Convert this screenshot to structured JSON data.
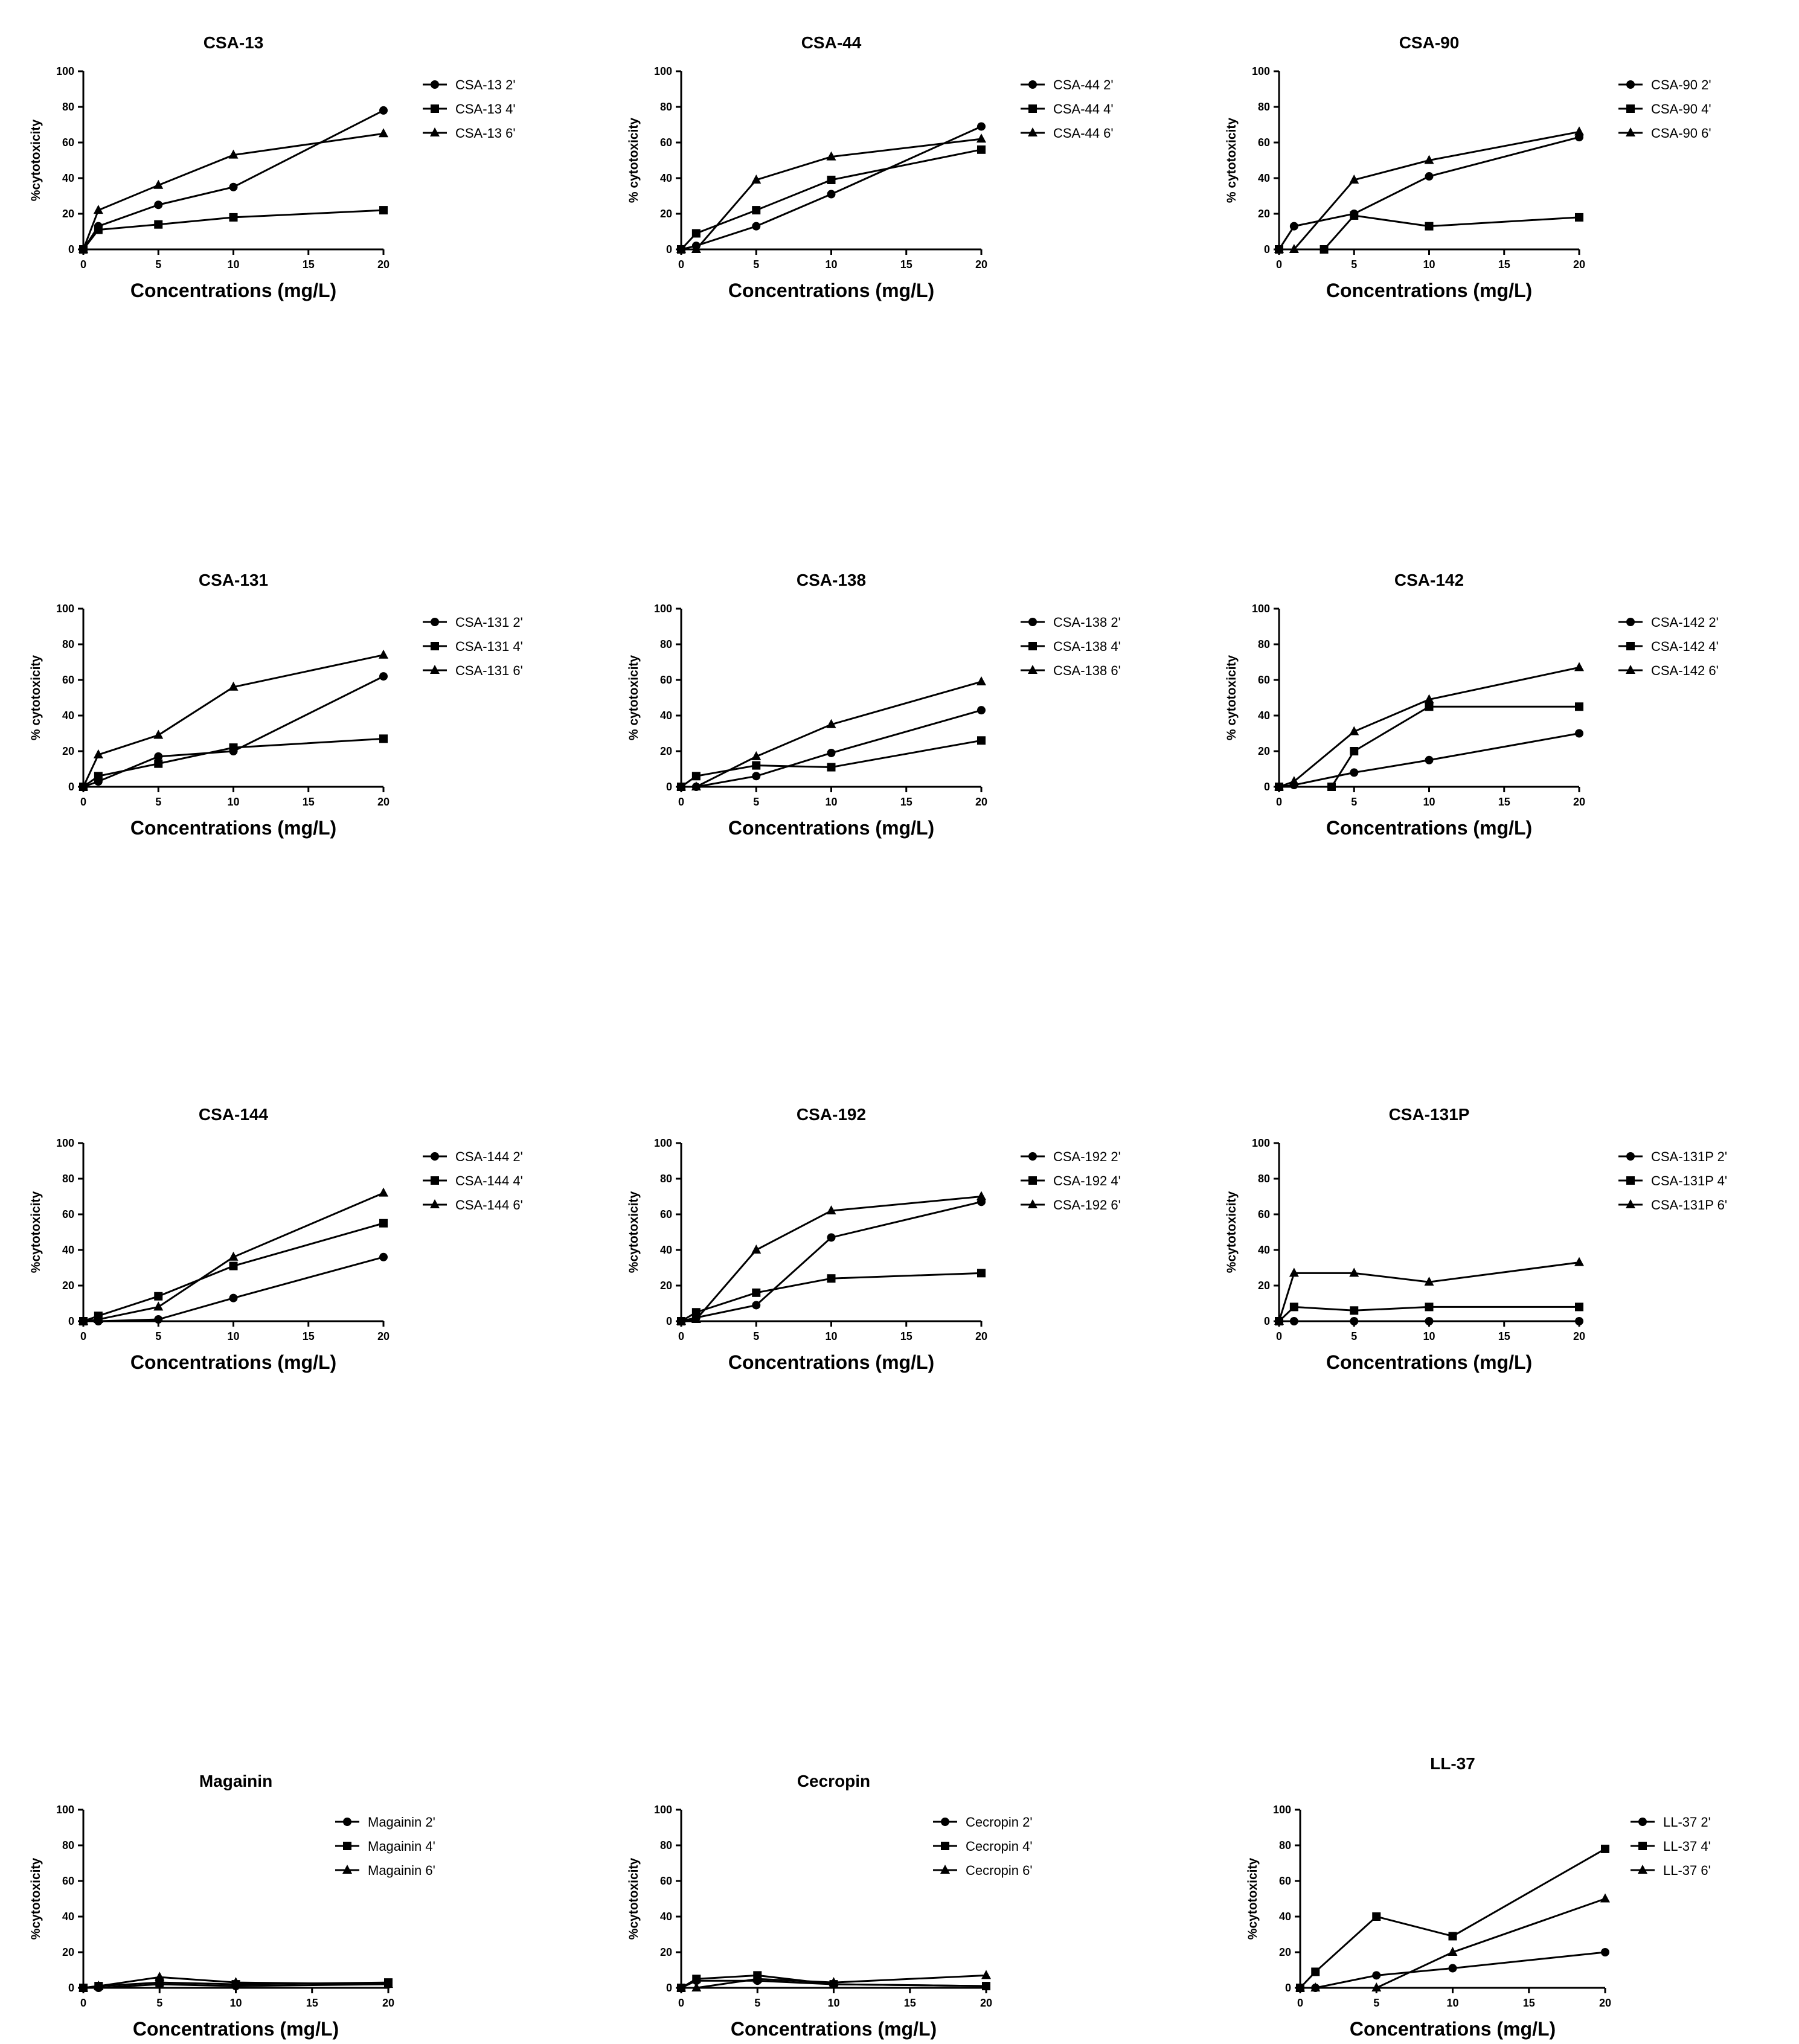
{
  "chart_data": [
    {
      "type": "line",
      "title": "CSA-13",
      "xlabel": "Concentrations (mg/L)",
      "ylabel": "%cytotoxicity",
      "xlim": [
        0,
        20
      ],
      "ylim": [
        0,
        100
      ],
      "xticks": [
        "0",
        "5",
        "10",
        "15",
        "20"
      ],
      "yticks": [
        "0",
        "20",
        "40",
        "60",
        "80",
        "100"
      ],
      "series": [
        {
          "name": "CSA-13 2'",
          "marker": "circle",
          "x": [
            0,
            1,
            5,
            10,
            20
          ],
          "y": [
            0,
            13,
            25,
            35,
            78
          ]
        },
        {
          "name": "CSA-13 4'",
          "marker": "square",
          "x": [
            0,
            1,
            5,
            10,
            20
          ],
          "y": [
            0,
            11,
            14,
            18,
            22
          ]
        },
        {
          "name": "CSA-13 6'",
          "marker": "triangle",
          "x": [
            0,
            1,
            5,
            10,
            20
          ],
          "y": [
            0,
            22,
            36,
            53,
            65
          ]
        }
      ]
    },
    {
      "type": "line",
      "title": "CSA-44",
      "xlabel": "Concentrations (mg/L)",
      "ylabel": "% cytotoxicity",
      "xlim": [
        0,
        20
      ],
      "ylim": [
        0,
        100
      ],
      "xticks": [
        "0",
        "5",
        "10",
        "15",
        "20"
      ],
      "yticks": [
        "0",
        "20",
        "40",
        "60",
        "80",
        "100"
      ],
      "series": [
        {
          "name": "CSA-44 2'",
          "marker": "circle",
          "x": [
            0,
            1,
            5,
            10,
            20
          ],
          "y": [
            0,
            2,
            13,
            31,
            69
          ]
        },
        {
          "name": "CSA-44 4'",
          "marker": "square",
          "x": [
            0,
            1,
            5,
            10,
            20
          ],
          "y": [
            0,
            9,
            22,
            39,
            56
          ]
        },
        {
          "name": "CSA-44 6'",
          "marker": "triangle",
          "x": [
            0,
            1,
            5,
            10,
            20
          ],
          "y": [
            0,
            0,
            39,
            52,
            62
          ]
        }
      ]
    },
    {
      "type": "line",
      "title": "CSA-90",
      "xlabel": "Concentrations (mg/L)",
      "ylabel": "% cytotoxicity",
      "xlim": [
        0,
        20
      ],
      "ylim": [
        0,
        100
      ],
      "xticks": [
        "0",
        "5",
        "10",
        "15",
        "20"
      ],
      "yticks": [
        "0",
        "20",
        "40",
        "60",
        "80",
        "100"
      ],
      "series": [
        {
          "name": "CSA-90 2'",
          "marker": "circle",
          "x": [
            0,
            1,
            5,
            10,
            20
          ],
          "y": [
            0,
            13,
            20,
            41,
            63
          ]
        },
        {
          "name": "CSA-90 4'",
          "marker": "square",
          "x": [
            0,
            3,
            5,
            10,
            20
          ],
          "y": [
            0,
            0,
            19,
            13,
            18
          ]
        },
        {
          "name": "CSA-90 6'",
          "marker": "triangle",
          "x": [
            0,
            1,
            5,
            10,
            20
          ],
          "y": [
            0,
            0,
            39,
            50,
            66
          ]
        }
      ]
    },
    {
      "type": "line",
      "title": "CSA-131",
      "xlabel": "Concentrations (mg/L)",
      "ylabel": "% cytotoxicity",
      "xlim": [
        0,
        20
      ],
      "ylim": [
        0,
        100
      ],
      "xticks": [
        "0",
        "5",
        "10",
        "15",
        "20"
      ],
      "yticks": [
        "0",
        "20",
        "40",
        "60",
        "80",
        "100"
      ],
      "series": [
        {
          "name": "CSA-131 2'",
          "marker": "circle",
          "x": [
            0,
            1,
            5,
            10,
            20
          ],
          "y": [
            0,
            3,
            17,
            20,
            62
          ]
        },
        {
          "name": "CSA-131 4'",
          "marker": "square",
          "x": [
            0,
            1,
            5,
            10,
            20
          ],
          "y": [
            0,
            6,
            13,
            22,
            27
          ]
        },
        {
          "name": "CSA-131 6'",
          "marker": "triangle",
          "x": [
            0,
            1,
            5,
            10,
            20
          ],
          "y": [
            0,
            18,
            29,
            56,
            74
          ]
        }
      ]
    },
    {
      "type": "line",
      "title": "CSA-138",
      "xlabel": "Concentrations (mg/L)",
      "ylabel": "% cytotoxicity",
      "xlim": [
        0,
        20
      ],
      "ylim": [
        0,
        100
      ],
      "xticks": [
        "0",
        "5",
        "10",
        "15",
        "20"
      ],
      "yticks": [
        "0",
        "20",
        "40",
        "60",
        "80",
        "100"
      ],
      "series": [
        {
          "name": "CSA-138 2'",
          "marker": "circle",
          "x": [
            0,
            1,
            5,
            10,
            20
          ],
          "y": [
            0,
            0,
            6,
            19,
            43
          ]
        },
        {
          "name": "CSA-138 4'",
          "marker": "square",
          "x": [
            0,
            1,
            5,
            10,
            20
          ],
          "y": [
            0,
            6,
            12,
            11,
            26
          ]
        },
        {
          "name": "CSA-138 6'",
          "marker": "triangle",
          "x": [
            0,
            1,
            5,
            10,
            20
          ],
          "y": [
            0,
            0,
            17,
            35,
            59
          ]
        }
      ]
    },
    {
      "type": "line",
      "title": "CSA-142",
      "xlabel": "Concentrations (mg/L)",
      "ylabel": "% cytotoxicity",
      "xlim": [
        0,
        20
      ],
      "ylim": [
        0,
        100
      ],
      "xticks": [
        "0",
        "5",
        "10",
        "15",
        "20"
      ],
      "yticks": [
        "0",
        "20",
        "40",
        "60",
        "80",
        "100"
      ],
      "series": [
        {
          "name": "CSA-142 2'",
          "marker": "circle",
          "x": [
            0,
            1,
            5,
            10,
            20
          ],
          "y": [
            0,
            1,
            8,
            15,
            30
          ]
        },
        {
          "name": "CSA-142 4'",
          "marker": "square",
          "x": [
            0,
            3.5,
            5,
            10,
            20
          ],
          "y": [
            0,
            0,
            20,
            45,
            45
          ]
        },
        {
          "name": "CSA-142 6'",
          "marker": "triangle",
          "x": [
            0,
            1,
            5,
            10,
            20
          ],
          "y": [
            0,
            3,
            31,
            49,
            67
          ]
        }
      ]
    },
    {
      "type": "line",
      "title": "CSA-144",
      "xlabel": "Concentrations (mg/L)",
      "ylabel": "%cytotoxicity",
      "xlim": [
        0,
        20
      ],
      "ylim": [
        0,
        100
      ],
      "xticks": [
        "0",
        "5",
        "10",
        "15",
        "20"
      ],
      "yticks": [
        "0",
        "20",
        "40",
        "60",
        "80",
        "100"
      ],
      "series": [
        {
          "name": "CSA-144 2'",
          "marker": "circle",
          "x": [
            0,
            1,
            5,
            10,
            20
          ],
          "y": [
            0,
            0,
            1,
            13,
            36
          ]
        },
        {
          "name": "CSA-144 4'",
          "marker": "square",
          "x": [
            0,
            1,
            5,
            10,
            20
          ],
          "y": [
            0,
            3,
            14,
            31,
            55
          ]
        },
        {
          "name": "CSA-144 6'",
          "marker": "triangle",
          "x": [
            0,
            1,
            5,
            10,
            20
          ],
          "y": [
            0,
            1,
            8,
            36,
            72
          ]
        }
      ]
    },
    {
      "type": "line",
      "title": "CSA-192",
      "xlabel": "Concentrations (mg/L)",
      "ylabel": "%cytotoxicity",
      "xlim": [
        0,
        20
      ],
      "ylim": [
        0,
        100
      ],
      "xticks": [
        "0",
        "5",
        "10",
        "15",
        "20"
      ],
      "yticks": [
        "0",
        "20",
        "40",
        "60",
        "80",
        "100"
      ],
      "series": [
        {
          "name": "CSA-192 2'",
          "marker": "circle",
          "x": [
            0,
            1,
            5,
            10,
            20
          ],
          "y": [
            0,
            2,
            9,
            47,
            67
          ]
        },
        {
          "name": "CSA-192 4'",
          "marker": "square",
          "x": [
            0,
            1,
            5,
            10,
            20
          ],
          "y": [
            0,
            5,
            16,
            24,
            27
          ]
        },
        {
          "name": "CSA-192 6'",
          "marker": "triangle",
          "x": [
            0,
            1,
            5,
            10,
            20
          ],
          "y": [
            0,
            1,
            40,
            62,
            70
          ]
        }
      ]
    },
    {
      "type": "line",
      "title": "CSA-131P",
      "xlabel": "Concentrations (mg/L)",
      "ylabel": "%cytotoxicity",
      "xlim": [
        0,
        20
      ],
      "ylim": [
        0,
        100
      ],
      "xticks": [
        "0",
        "5",
        "10",
        "15",
        "20"
      ],
      "yticks": [
        "0",
        "20",
        "40",
        "60",
        "80",
        "100"
      ],
      "series": [
        {
          "name": "CSA-131P 2'",
          "marker": "circle",
          "x": [
            0,
            1,
            5,
            10,
            20
          ],
          "y": [
            0,
            0,
            0,
            0,
            0
          ]
        },
        {
          "name": "CSA-131P 4'",
          "marker": "square",
          "x": [
            0,
            1,
            5,
            10,
            20
          ],
          "y": [
            0,
            8,
            6,
            8,
            8
          ]
        },
        {
          "name": "CSA-131P 6'",
          "marker": "triangle",
          "x": [
            0,
            1,
            5,
            10,
            20
          ],
          "y": [
            0,
            27,
            27,
            22,
            33
          ]
        }
      ]
    },
    {
      "type": "line",
      "title": "Magainin",
      "xlabel": "Concentrations (mg/L)",
      "ylabel": "%cytotoxicity",
      "xlim": [
        0,
        20
      ],
      "ylim": [
        0,
        100
      ],
      "xticks": [
        "0",
        "5",
        "10",
        "15",
        "20"
      ],
      "yticks": [
        "0",
        "20",
        "40",
        "60",
        "80",
        "100"
      ],
      "series": [
        {
          "name": "Magainin 2'",
          "marker": "circle",
          "x": [
            0,
            1,
            5,
            10,
            20
          ],
          "y": [
            0,
            0,
            2,
            1,
            2
          ]
        },
        {
          "name": "Magainin 4'",
          "marker": "square",
          "x": [
            0,
            1,
            5,
            10,
            20
          ],
          "y": [
            0,
            1,
            3,
            2,
            3
          ]
        },
        {
          "name": "Magainin 6'",
          "marker": "triangle",
          "x": [
            0,
            1,
            5,
            10,
            20
          ],
          "y": [
            0,
            1,
            6,
            3,
            2
          ]
        }
      ]
    },
    {
      "type": "line",
      "title": "Cecropin",
      "xlabel": "Concentrations (mg/L)",
      "ylabel": "%cytotoxicity",
      "xlim": [
        0,
        20
      ],
      "ylim": [
        0,
        100
      ],
      "xticks": [
        "0",
        "5",
        "10",
        "15",
        "20"
      ],
      "yticks": [
        "0",
        "20",
        "40",
        "60",
        "80",
        "100"
      ],
      "series": [
        {
          "name": "Cecropin 2'",
          "marker": "circle",
          "x": [
            0,
            1,
            5,
            10,
            20
          ],
          "y": [
            0,
            4,
            4,
            2,
            1
          ]
        },
        {
          "name": "Cecropin 4'",
          "marker": "square",
          "x": [
            0,
            1,
            5,
            10,
            20
          ],
          "y": [
            0,
            5,
            7,
            2,
            1
          ]
        },
        {
          "name": "Cecropin 6'",
          "marker": "triangle",
          "x": [
            0,
            1,
            5,
            10,
            20
          ],
          "y": [
            0,
            0,
            5,
            3,
            7
          ]
        }
      ]
    },
    {
      "type": "line",
      "title": "LL-37",
      "xlabel": "Concentrations (mg/L)",
      "ylabel": "%cytotoxicity",
      "xlim": [
        0,
        20
      ],
      "ylim": [
        0,
        100
      ],
      "xticks": [
        "0",
        "5",
        "10",
        "15",
        "20"
      ],
      "yticks": [
        "0",
        "20",
        "40",
        "60",
        "80",
        "100"
      ],
      "series": [
        {
          "name": "LL-37 2'",
          "marker": "circle",
          "x": [
            0,
            1,
            5,
            10,
            20
          ],
          "y": [
            0,
            0,
            7,
            11,
            20
          ]
        },
        {
          "name": "LL-37 4'",
          "marker": "square",
          "x": [
            0,
            1,
            5,
            10,
            20
          ],
          "y": [
            0,
            9,
            40,
            29,
            78
          ]
        },
        {
          "name": "LL-37 6'",
          "marker": "triangle",
          "x": [
            0,
            1,
            5,
            10,
            20
          ],
          "y": [
            0,
            0,
            0,
            20,
            50
          ]
        }
      ]
    }
  ]
}
